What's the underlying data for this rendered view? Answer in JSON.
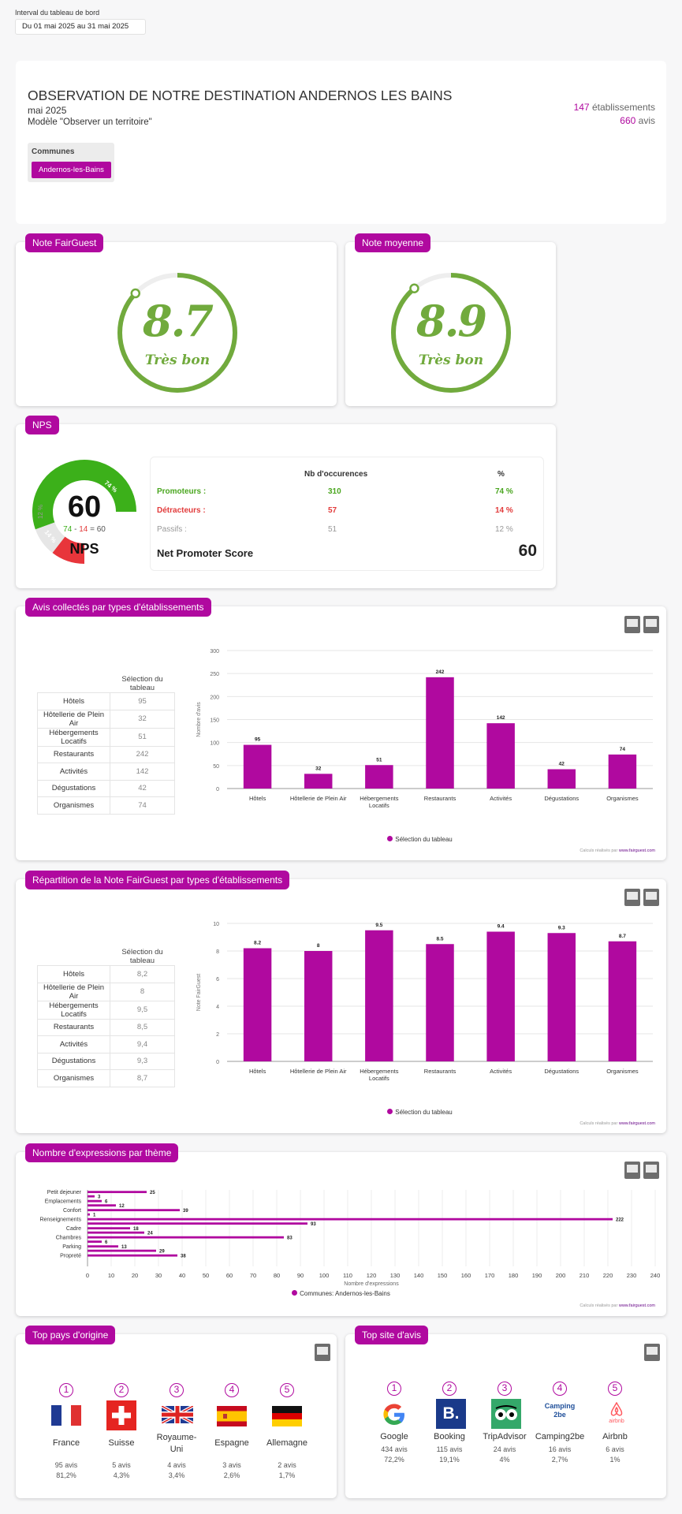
{
  "interval": {
    "label": "Interval du tableau de bord",
    "value": "Du 01 mai 2025 au 31 mai 2025"
  },
  "header": {
    "title": "OBSERVATION DE NOTRE DESTINATION ANDERNOS LES BAINS",
    "period": "mai 2025",
    "model": "Modèle \"Observer un territoire\"",
    "communes_label": "Communes",
    "commune_tag": "Andernos-les-Bains",
    "etab_count": "147",
    "etab_label": "établissements",
    "avis_count": "660",
    "avis_label": "avis"
  },
  "fairguest": {
    "title": "Note FairGuest",
    "score": "8.7",
    "verdict": "Très bon",
    "fraction": 0.87
  },
  "moyenne": {
    "title": "Note moyenne",
    "score": "8.9",
    "verdict": "Très bon",
    "fraction": 0.89
  },
  "nps": {
    "title": "NPS",
    "score": "60",
    "label": "NPS",
    "formula_a": "74",
    "minus": "-",
    "formula_b": "14",
    "eq": "=",
    "formula_c": "60",
    "seg_prom": "74 %",
    "seg_pass": "12 %",
    "seg_det": "14 %",
    "col_occ": "Nb d'occurences",
    "col_pct": "%",
    "rows": [
      {
        "label": "Promoteurs :",
        "occ": "310",
        "pct": "74 %",
        "color": "#4aa61f"
      },
      {
        "label": "Détracteurs :",
        "occ": "57",
        "pct": "14 %",
        "color": "#e23b3b"
      },
      {
        "label": "Passifs :",
        "occ": "51",
        "pct": "12 %",
        "color": "#999999"
      }
    ],
    "net_label": "Net Promoter Score",
    "net_value": "60",
    "colors": {
      "prom": "#3cb01a",
      "pass": "#e6e6e6",
      "det": "#e8353b"
    }
  },
  "avis_types": {
    "title": "Avis collectés par types d'établissements",
    "col": "Sélection du tableau",
    "rows": [
      {
        "l": "Hôtels",
        "v": "95"
      },
      {
        "l": "Hôtellerie de Plein Air",
        "v": "32"
      },
      {
        "l": "Hébergements Locatifs",
        "v": "51"
      },
      {
        "l": "Restaurants",
        "v": "242"
      },
      {
        "l": "Activités",
        "v": "142"
      },
      {
        "l": "Dégustations",
        "v": "42"
      },
      {
        "l": "Organismes",
        "v": "74"
      }
    ],
    "legend": "Sélection du tableau",
    "credit": "Calculs réalisés par ",
    "credit_link": "www.fairguest.com"
  },
  "note_types": {
    "title": "Répartition de la Note FairGuest par types d'établissements",
    "col": "Sélection du tableau",
    "rows": [
      {
        "l": "Hôtels",
        "v": "8,2"
      },
      {
        "l": "Hôtellerie de Plein Air",
        "v": "8"
      },
      {
        "l": "Hébergements Locatifs",
        "v": "9,5"
      },
      {
        "l": "Restaurants",
        "v": "8,5"
      },
      {
        "l": "Activités",
        "v": "9,4"
      },
      {
        "l": "Dégustations",
        "v": "9,3"
      },
      {
        "l": "Organismes",
        "v": "8,7"
      }
    ],
    "legend": "Sélection du tableau",
    "credit": "Calculs réalisés par ",
    "credit_link": "www.fairguest.com"
  },
  "themes": {
    "title": "Nombre d'expressions par thème",
    "legend": "Communes: Andernos-les-Bains",
    "credit": "Calculs réalisés par ",
    "credit_link": "www.fairguest.com"
  },
  "pays": {
    "title": "Top pays d'origine",
    "items": [
      {
        "rank": "1",
        "name": "France",
        "avis": "95 avis",
        "pct": "81,2%"
      },
      {
        "rank": "2",
        "name": "Suisse",
        "avis": "5 avis",
        "pct": "4,3%"
      },
      {
        "rank": "3",
        "name": "Royaume-Uni",
        "avis": "4 avis",
        "pct": "3,4%"
      },
      {
        "rank": "4",
        "name": "Espagne",
        "avis": "3 avis",
        "pct": "2,6%"
      },
      {
        "rank": "5",
        "name": "Allemagne",
        "avis": "2 avis",
        "pct": "1,7%"
      }
    ]
  },
  "sites": {
    "title": "Top site d'avis",
    "items": [
      {
        "rank": "1",
        "name": "Google",
        "avis": "434 avis",
        "pct": "72,2%"
      },
      {
        "rank": "2",
        "name": "Booking",
        "avis": "115 avis",
        "pct": "19,1%"
      },
      {
        "rank": "3",
        "name": "TripAdvisor",
        "avis": "24 avis",
        "pct": "4%"
      },
      {
        "rank": "4",
        "name": "Camping2be",
        "avis": "16 avis",
        "pct": "2,7%"
      },
      {
        "rank": "5",
        "name": "Airbnb",
        "avis": "6 avis",
        "pct": "1%"
      }
    ],
    "camping_logo": "Camping 2be",
    "airbnb_logo": "airbnb",
    "booking_logo": "B."
  },
  "chart_data": [
    {
      "type": "bar",
      "categories": [
        "Hôtels",
        "Hôtellerie de Plein Air",
        "Hébergements Locatifs",
        "Restaurants",
        "Activités",
        "Dégustations",
        "Organismes"
      ],
      "values": [
        95,
        32,
        51,
        242,
        142,
        42,
        74
      ],
      "ylabel": "Nombre d'avis",
      "ylim": [
        0,
        300
      ],
      "yticks": [
        0,
        50,
        100,
        150,
        200,
        250,
        300
      ],
      "series": [
        {
          "name": "Sélection du tableau",
          "values": [
            95,
            32,
            51,
            242,
            142,
            42,
            74
          ]
        }
      ],
      "color": "#b0099f",
      "legend": "bottom"
    },
    {
      "type": "bar",
      "categories": [
        "Hôtels",
        "Hôtellerie de Plein Air",
        "Hébergements Locatifs",
        "Restaurants",
        "Activités",
        "Dégustations",
        "Organismes"
      ],
      "values": [
        8.2,
        8,
        9.5,
        8.5,
        9.4,
        9.3,
        8.7
      ],
      "ylabel": "Note FairGuest",
      "ylim": [
        0,
        10
      ],
      "yticks": [
        0,
        2,
        4,
        6,
        8,
        10
      ],
      "series": [
        {
          "name": "Sélection du tableau",
          "values": [
            8.2,
            8,
            9.5,
            8.5,
            9.4,
            9.3,
            8.7
          ]
        }
      ],
      "color": "#b0099f",
      "legend": "bottom"
    },
    {
      "type": "bar",
      "orientation": "horizontal",
      "categories": [
        "Petit dejeuner",
        "Emplacements",
        "Confort",
        "Renseignements",
        "Cadre",
        "Chambres",
        "Parking",
        "Propreté"
      ],
      "rows": [
        {
          "cat": "Petit dejeuner",
          "values": [
            25,
            3
          ]
        },
        {
          "cat": "Emplacements",
          "values": [
            6,
            12
          ]
        },
        {
          "cat": "Confort",
          "values": [
            39,
            1
          ]
        },
        {
          "cat": "Renseignements",
          "values": [
            222,
            93
          ]
        },
        {
          "cat": "Cadre",
          "values": [
            18,
            24
          ]
        },
        {
          "cat": "Chambres",
          "values": [
            83,
            6
          ]
        },
        {
          "cat": "Parking",
          "values": [
            13,
            29
          ]
        },
        {
          "cat": "Propreté",
          "values": [
            38
          ]
        }
      ],
      "xlabel": "Nombre d'expressions",
      "xlim": [
        0,
        240
      ],
      "xticks": [
        0,
        10,
        20,
        30,
        40,
        50,
        60,
        70,
        80,
        90,
        100,
        110,
        120,
        130,
        140,
        150,
        160,
        170,
        180,
        190,
        200,
        210,
        220,
        230,
        240
      ],
      "series": [
        {
          "name": "Communes: Andernos-les-Bains"
        }
      ],
      "color": "#b0099f",
      "legend": "bottom"
    }
  ]
}
